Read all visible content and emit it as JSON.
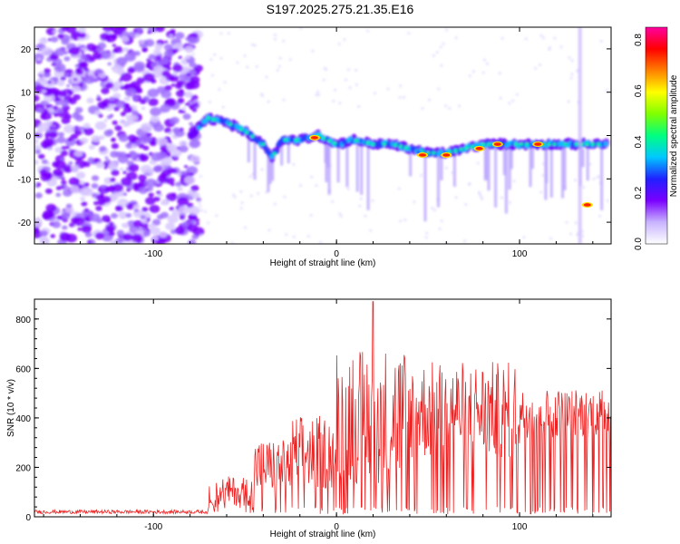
{
  "title": "S197.2025.275.21.35.E16",
  "chart_data": [
    {
      "type": "heatmap",
      "xlabel": "Height of straight line (km)",
      "ylabel": "Frequency (Hz)",
      "xlim": [
        -165,
        150
      ],
      "ylim": [
        -25,
        25
      ],
      "xticks": [
        -100,
        0,
        100
      ],
      "yticks": [
        -20,
        -10,
        0,
        10,
        20
      ],
      "colorbar": {
        "label": "Normalized spectral amplitude",
        "range": [
          0.0,
          0.85
        ],
        "ticks": [
          0.0,
          0.2,
          0.4,
          0.6,
          0.8
        ],
        "colors": [
          "#ffffff",
          "#c8b4ff",
          "#7a00ff",
          "#2020ff",
          "#00c8ff",
          "#00ff80",
          "#80ff00",
          "#ffff00",
          "#ff8000",
          "#ff0000",
          "#ff00a0"
        ]
      },
      "ridge": {
        "x": [
          -80,
          -70,
          -60,
          -50,
          -40,
          -35,
          -30,
          -20,
          -10,
          0,
          10,
          20,
          30,
          40,
          50,
          60,
          70,
          80,
          90,
          100,
          110,
          120,
          130,
          140,
          147
        ],
        "freq": [
          0,
          4,
          3,
          1,
          -2,
          -5,
          -1,
          -1,
          0,
          -2,
          -1,
          -2,
          -2,
          -3,
          -4,
          -4,
          -3,
          -2,
          -2,
          -2,
          -2,
          -2,
          -2,
          -2,
          -2
        ]
      },
      "hotspots": [
        {
          "x": -12,
          "freq": -0.5
        },
        {
          "x": 47,
          "freq": -4.5
        },
        {
          "x": 60,
          "freq": -4.5
        },
        {
          "x": 78,
          "freq": -3
        },
        {
          "x": 88,
          "freq": -2
        },
        {
          "x": 110,
          "freq": -2
        },
        {
          "x": 137,
          "freq": -16
        }
      ]
    },
    {
      "type": "line",
      "xlabel": "Height of straight line (km)",
      "ylabel": "SNR (10 * v/v)",
      "xlim": [
        -165,
        150
      ],
      "ylim": [
        0,
        880
      ],
      "xticks": [
        -100,
        0,
        100
      ],
      "yticks": [
        0,
        200,
        400,
        600,
        800
      ],
      "color": "#ee2222",
      "segments": [
        {
          "x_start": -165,
          "x_end": -70,
          "level": 20,
          "spread": 15
        },
        {
          "x_start": -70,
          "x_end": -45,
          "level": 80,
          "spread": 120
        },
        {
          "x_start": -45,
          "x_end": -25,
          "level": 160,
          "spread": 220
        },
        {
          "x_start": -25,
          "x_end": 0,
          "level": 200,
          "spread": 300
        },
        {
          "x_start": 0,
          "x_end": 40,
          "level": 300,
          "spread": 560
        },
        {
          "x_start": 40,
          "x_end": 100,
          "level": 350,
          "spread": 400
        },
        {
          "x_start": 100,
          "x_end": 150,
          "level": 380,
          "spread": 200
        }
      ],
      "peak": {
        "x": 20,
        "y": 870
      }
    }
  ]
}
